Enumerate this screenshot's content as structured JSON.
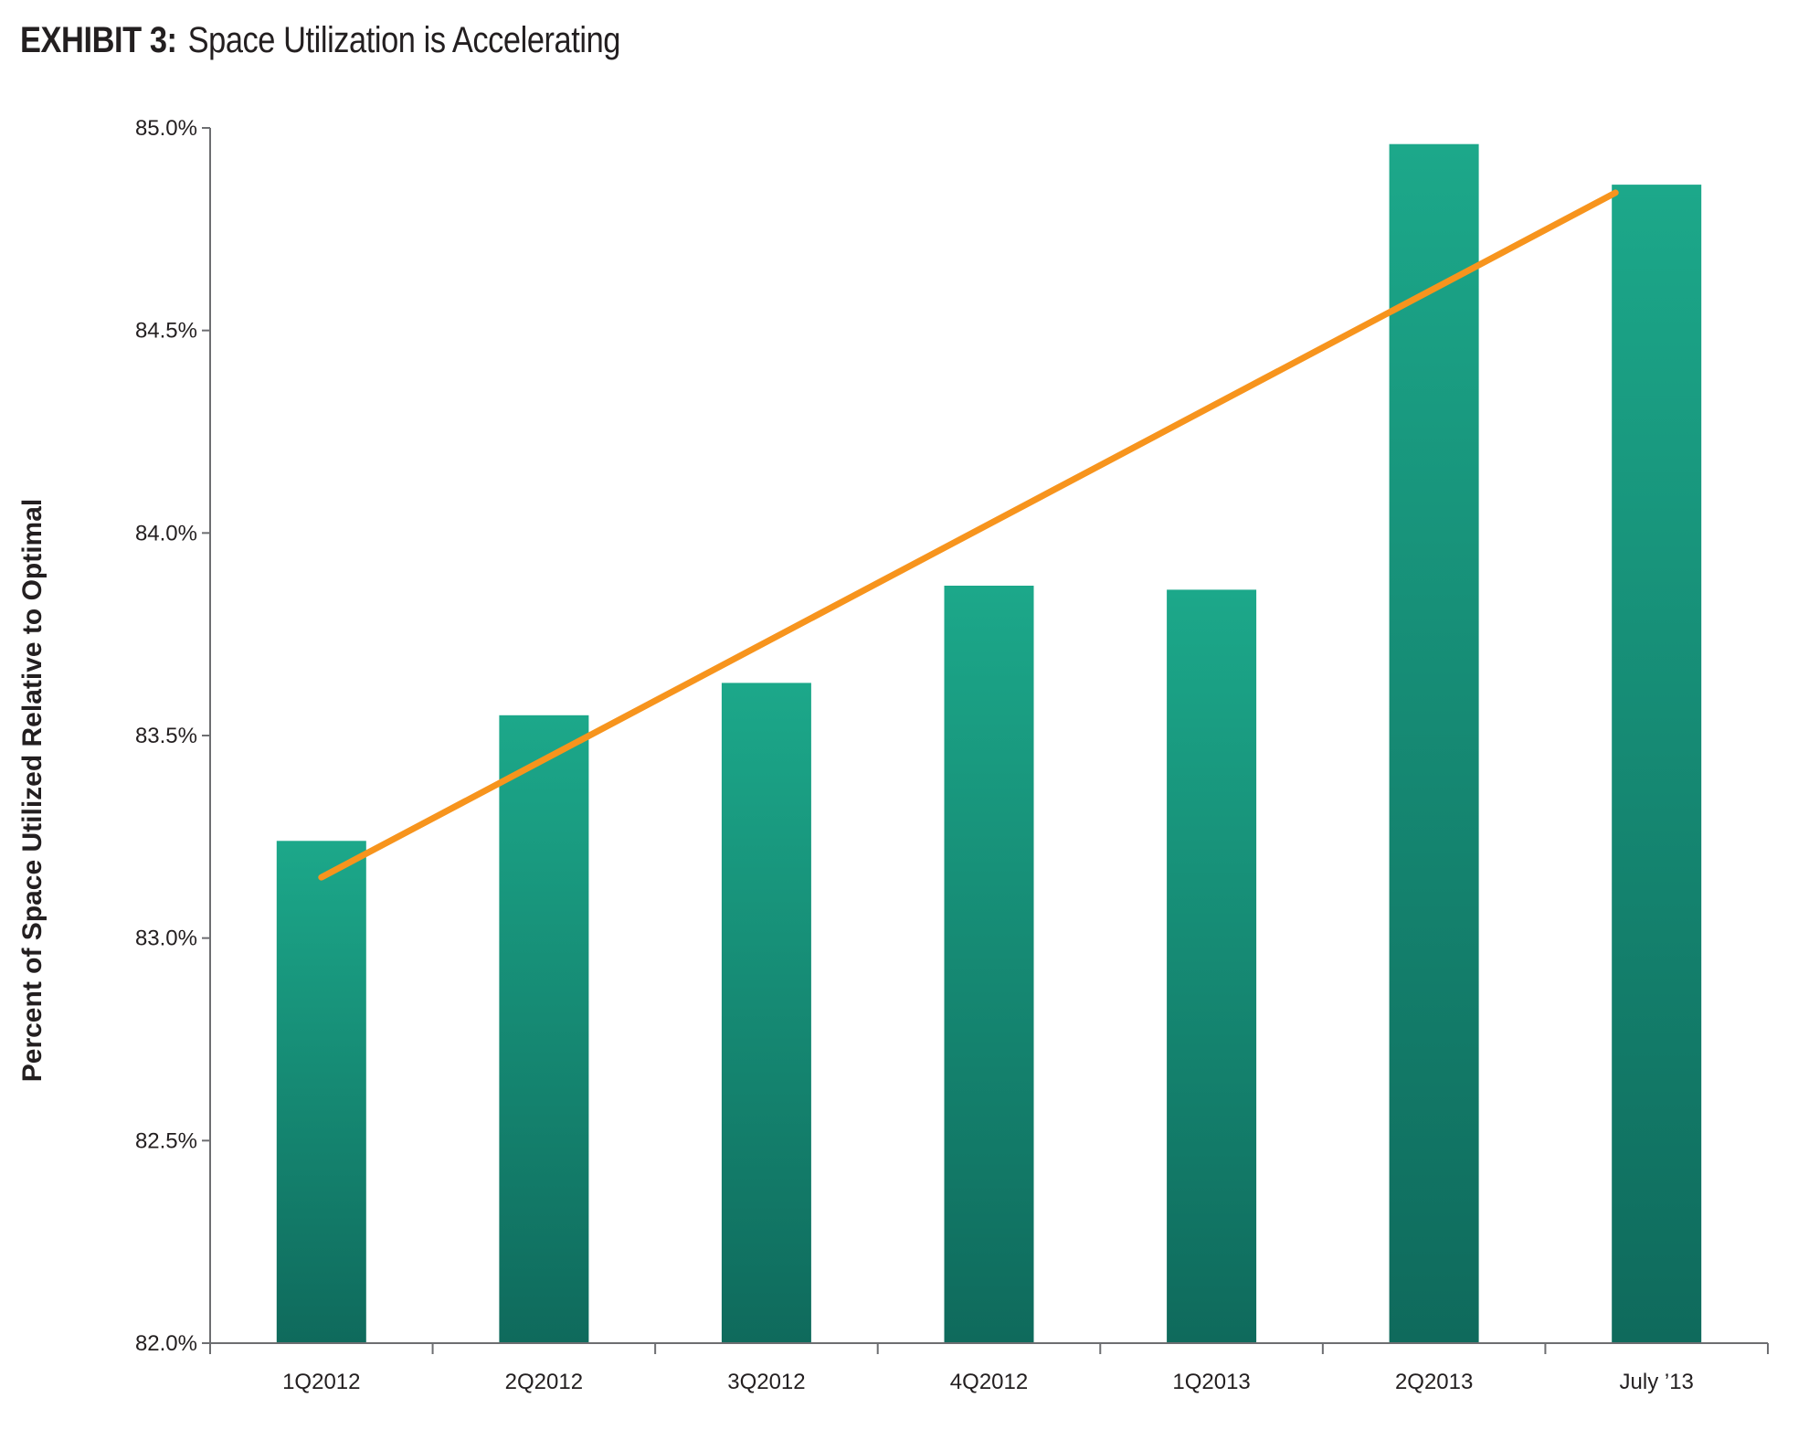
{
  "header": {
    "exhibit_label": "EXHIBIT 3:",
    "title_text": "Space Utilization is Accelerating"
  },
  "chart_data": {
    "type": "bar",
    "title": "EXHIBIT 3: Space Utilization is Accelerating",
    "xlabel": "",
    "ylabel": "Percent of Space Utilized Relative to Optimal",
    "categories": [
      "1Q2012",
      "2Q2012",
      "3Q2012",
      "4Q2012",
      "1Q2013",
      "2Q2013",
      "July ’13"
    ],
    "values": [
      83.24,
      83.55,
      83.63,
      83.87,
      83.86,
      84.96,
      84.86
    ],
    "ylim": [
      82.0,
      85.0
    ],
    "yticks": [
      82.0,
      82.5,
      83.0,
      83.5,
      84.0,
      84.5,
      85.0
    ],
    "ytick_labels": [
      "82.0%",
      "82.5%",
      "83.0%",
      "83.5%",
      "84.0%",
      "84.5%",
      "85.0%"
    ],
    "trendline": {
      "start": 83.15,
      "end": 84.84
    },
    "grid": false,
    "legend": "none",
    "colors": {
      "bar_top": "#1ca88a",
      "bar_bottom": "#0f6a5c",
      "trendline": "#f7941d",
      "axis": "#6d6e71",
      "text": "#231f20"
    }
  }
}
